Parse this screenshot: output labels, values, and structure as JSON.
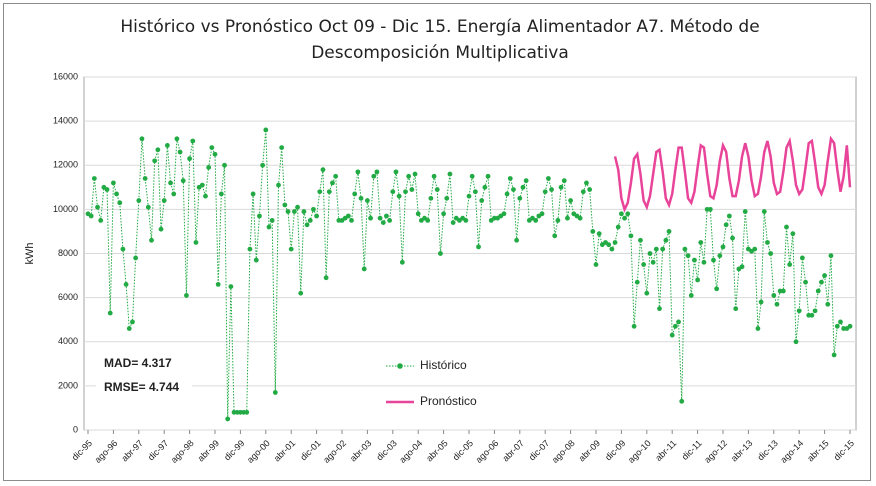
{
  "chart_data": {
    "type": "line",
    "title": "Histórico vs Pronóstico Oct 09 - Dic 15. Energía Alimentador  A7. Método de Descomposición Multiplicativa",
    "y_label": "kWh",
    "annotations": [
      "MAD= 4.317",
      "RMSE= 4.744"
    ],
    "ylim": [
      0,
      16000
    ],
    "yticks": [
      0,
      2000,
      4000,
      6000,
      8000,
      10000,
      12000,
      14000,
      16000
    ],
    "grid": true,
    "legend": "center",
    "categories": [
      "dic-95",
      null,
      null,
      null,
      null,
      null,
      null,
      null,
      "ago-96",
      null,
      null,
      null,
      null,
      null,
      null,
      null,
      "abr-97",
      null,
      null,
      null,
      null,
      null,
      null,
      null,
      "dic-97",
      null,
      null,
      null,
      null,
      null,
      null,
      null,
      "ago-98",
      null,
      null,
      null,
      null,
      null,
      null,
      null,
      "abr-99",
      null,
      null,
      null,
      null,
      null,
      null,
      null,
      "dic-99",
      null,
      null,
      null,
      null,
      null,
      null,
      null,
      "ago-00",
      null,
      null,
      null,
      null,
      null,
      null,
      null,
      "abr-01",
      null,
      null,
      null,
      null,
      null,
      null,
      null,
      "dic-01",
      null,
      null,
      null,
      null,
      null,
      null,
      null,
      "ago-02",
      null,
      null,
      null,
      null,
      null,
      null,
      null,
      "abr-03",
      null,
      null,
      null,
      null,
      null,
      null,
      null,
      "dic-03",
      null,
      null,
      null,
      null,
      null,
      null,
      null,
      "ago-04",
      null,
      null,
      null,
      null,
      null,
      null,
      null,
      "abr-05",
      null,
      null,
      null,
      null,
      null,
      null,
      null,
      "dic-05",
      null,
      null,
      null,
      null,
      null,
      null,
      null,
      "ago-06",
      null,
      null,
      null,
      null,
      null,
      null,
      null,
      "abr-07",
      null,
      null,
      null,
      null,
      null,
      null,
      null,
      "dic-07",
      null,
      null,
      null,
      null,
      null,
      null,
      null,
      "ago-08",
      null,
      null,
      null,
      null,
      null,
      null,
      null,
      "abr-09",
      null,
      null,
      null,
      null,
      null,
      null,
      null,
      "dic-09",
      null,
      null,
      null,
      null,
      null,
      null,
      null,
      "ago-10",
      null,
      null,
      null,
      null,
      null,
      null,
      null,
      "abr-11",
      null,
      null,
      null,
      null,
      null,
      null,
      null,
      "dic-11",
      null,
      null,
      null,
      null,
      null,
      null,
      null,
      "ago-12",
      null,
      null,
      null,
      null,
      null,
      null,
      null,
      "abr-13",
      null,
      null,
      null,
      null,
      null,
      null,
      null,
      "dic-13",
      null,
      null,
      null,
      null,
      null,
      null,
      null,
      "ago-14",
      null,
      null,
      null,
      null,
      null,
      null,
      null,
      "abr-15",
      null,
      null,
      null,
      null,
      null,
      null,
      null,
      "dic-15"
    ],
    "series": [
      {
        "name": "Histórico",
        "color": "#22aa44",
        "values": [
          9800,
          9700,
          11400,
          10100,
          9500,
          11000,
          10900,
          5300,
          11200,
          10700,
          10300,
          8200,
          6600,
          4600,
          4900,
          7800,
          10400,
          13200,
          11400,
          10100,
          8600,
          12200,
          12700,
          9100,
          10400,
          12900,
          11200,
          10700,
          13200,
          12600,
          11300,
          6100,
          12300,
          13100,
          8500,
          11000,
          11100,
          10600,
          11900,
          12800,
          12500,
          6600,
          10700,
          12000,
          500,
          6500,
          800,
          800,
          800,
          800,
          800,
          8200,
          10700,
          7700,
          9700,
          12000,
          13600,
          9200,
          9500,
          1700,
          11100,
          12800,
          10200,
          9900,
          8200,
          9900,
          10100,
          6200,
          9900,
          9300,
          9500,
          10000,
          9700,
          10800,
          11800,
          6900,
          10800,
          11200,
          11500,
          9500,
          9500,
          9600,
          9700,
          9500,
          10700,
          11700,
          10500,
          7300,
          10400,
          9600,
          11500,
          11700,
          9600,
          9400,
          9700,
          9500,
          10800,
          11700,
          10600,
          7600,
          10800,
          11500,
          10900,
          11600,
          9800,
          9500,
          9600,
          9500,
          10500,
          11500,
          10900,
          8000,
          9800,
          10500,
          11600,
          9400,
          9600,
          9500,
          9600,
          9500,
          10600,
          11500,
          10800,
          8300,
          10400,
          11000,
          11500,
          9500,
          9600,
          9600,
          9700,
          9800,
          10700,
          11400,
          10900,
          8600,
          10500,
          11000,
          11300,
          9500,
          9600,
          9500,
          9700,
          9800,
          10800,
          11400,
          10900,
          8800,
          9500,
          11000,
          11300,
          9600,
          10400,
          9800,
          9700,
          9600,
          10800,
          11200,
          10900,
          9000,
          7500,
          8900,
          8400,
          8500,
          8400,
          8200,
          8500,
          9200,
          9800,
          9600,
          9800,
          8800,
          4700,
          6700,
          8600,
          7500,
          6200,
          8000,
          7600,
          8200,
          5500,
          8200,
          8600,
          9000,
          4300,
          4700,
          4900,
          1300,
          8200,
          7900,
          6100,
          7700,
          6800,
          8500,
          7600,
          10000,
          10000,
          7700,
          6400,
          7900,
          8300,
          9300,
          9700,
          8700,
          5500,
          7300,
          7400,
          9900,
          8200,
          8100,
          8200,
          4600,
          5800,
          9900,
          8500,
          8000,
          6100,
          5700,
          6300,
          6300,
          9200,
          7500,
          8900,
          4000,
          5400,
          7800,
          6700,
          5200,
          5200,
          5400,
          6300,
          6700,
          7000,
          5700,
          7900,
          3400,
          4700,
          4900,
          4600,
          4600,
          4700
        ]
      },
      {
        "name": "Pronóstico",
        "color": "#e8449a",
        "values": [
          null,
          null,
          null,
          null,
          null,
          null,
          null,
          null,
          null,
          null,
          null,
          null,
          null,
          null,
          null,
          null,
          null,
          null,
          null,
          null,
          null,
          null,
          null,
          null,
          null,
          null,
          null,
          null,
          null,
          null,
          null,
          null,
          null,
          null,
          null,
          null,
          null,
          null,
          null,
          null,
          null,
          null,
          null,
          null,
          null,
          null,
          null,
          null,
          null,
          null,
          null,
          null,
          null,
          null,
          null,
          null,
          null,
          null,
          null,
          null,
          null,
          null,
          null,
          null,
          null,
          null,
          null,
          null,
          null,
          null,
          null,
          null,
          null,
          null,
          null,
          null,
          null,
          null,
          null,
          null,
          null,
          null,
          null,
          null,
          null,
          null,
          null,
          null,
          null,
          null,
          null,
          null,
          null,
          null,
          null,
          null,
          null,
          null,
          null,
          null,
          null,
          null,
          null,
          null,
          null,
          null,
          null,
          null,
          null,
          null,
          null,
          null,
          null,
          null,
          null,
          null,
          null,
          null,
          null,
          null,
          null,
          null,
          null,
          null,
          null,
          null,
          null,
          null,
          null,
          null,
          null,
          null,
          null,
          null,
          null,
          null,
          null,
          null,
          null,
          null,
          null,
          null,
          null,
          null,
          null,
          null,
          null,
          null,
          null,
          null,
          null,
          null,
          null,
          null,
          null,
          null,
          null,
          null,
          null,
          null,
          null,
          null,
          null,
          null,
          null,
          null,
          12400,
          11800,
          10500,
          10000,
          10300,
          11200,
          12300,
          12500,
          11600,
          10400,
          10100,
          10600,
          11600,
          12600,
          12700,
          11700,
          10500,
          10200,
          10700,
          11800,
          12800,
          12800,
          11700,
          10500,
          10300,
          10800,
          11900,
          12900,
          12800,
          11600,
          10600,
          10500,
          11100,
          12200,
          12900,
          12600,
          11400,
          10600,
          10600,
          11300,
          12400,
          13000,
          12400,
          11300,
          10600,
          10700,
          11500,
          12600,
          13100,
          12400,
          11200,
          10700,
          10800,
          11700,
          12800,
          13100,
          12200,
          11100,
          10700,
          10900,
          11900,
          13000,
          13100,
          12100,
          11000,
          10700,
          11100,
          12200,
          13200,
          13000,
          11800,
          10800,
          11500,
          12900,
          11000
        ]
      }
    ]
  }
}
